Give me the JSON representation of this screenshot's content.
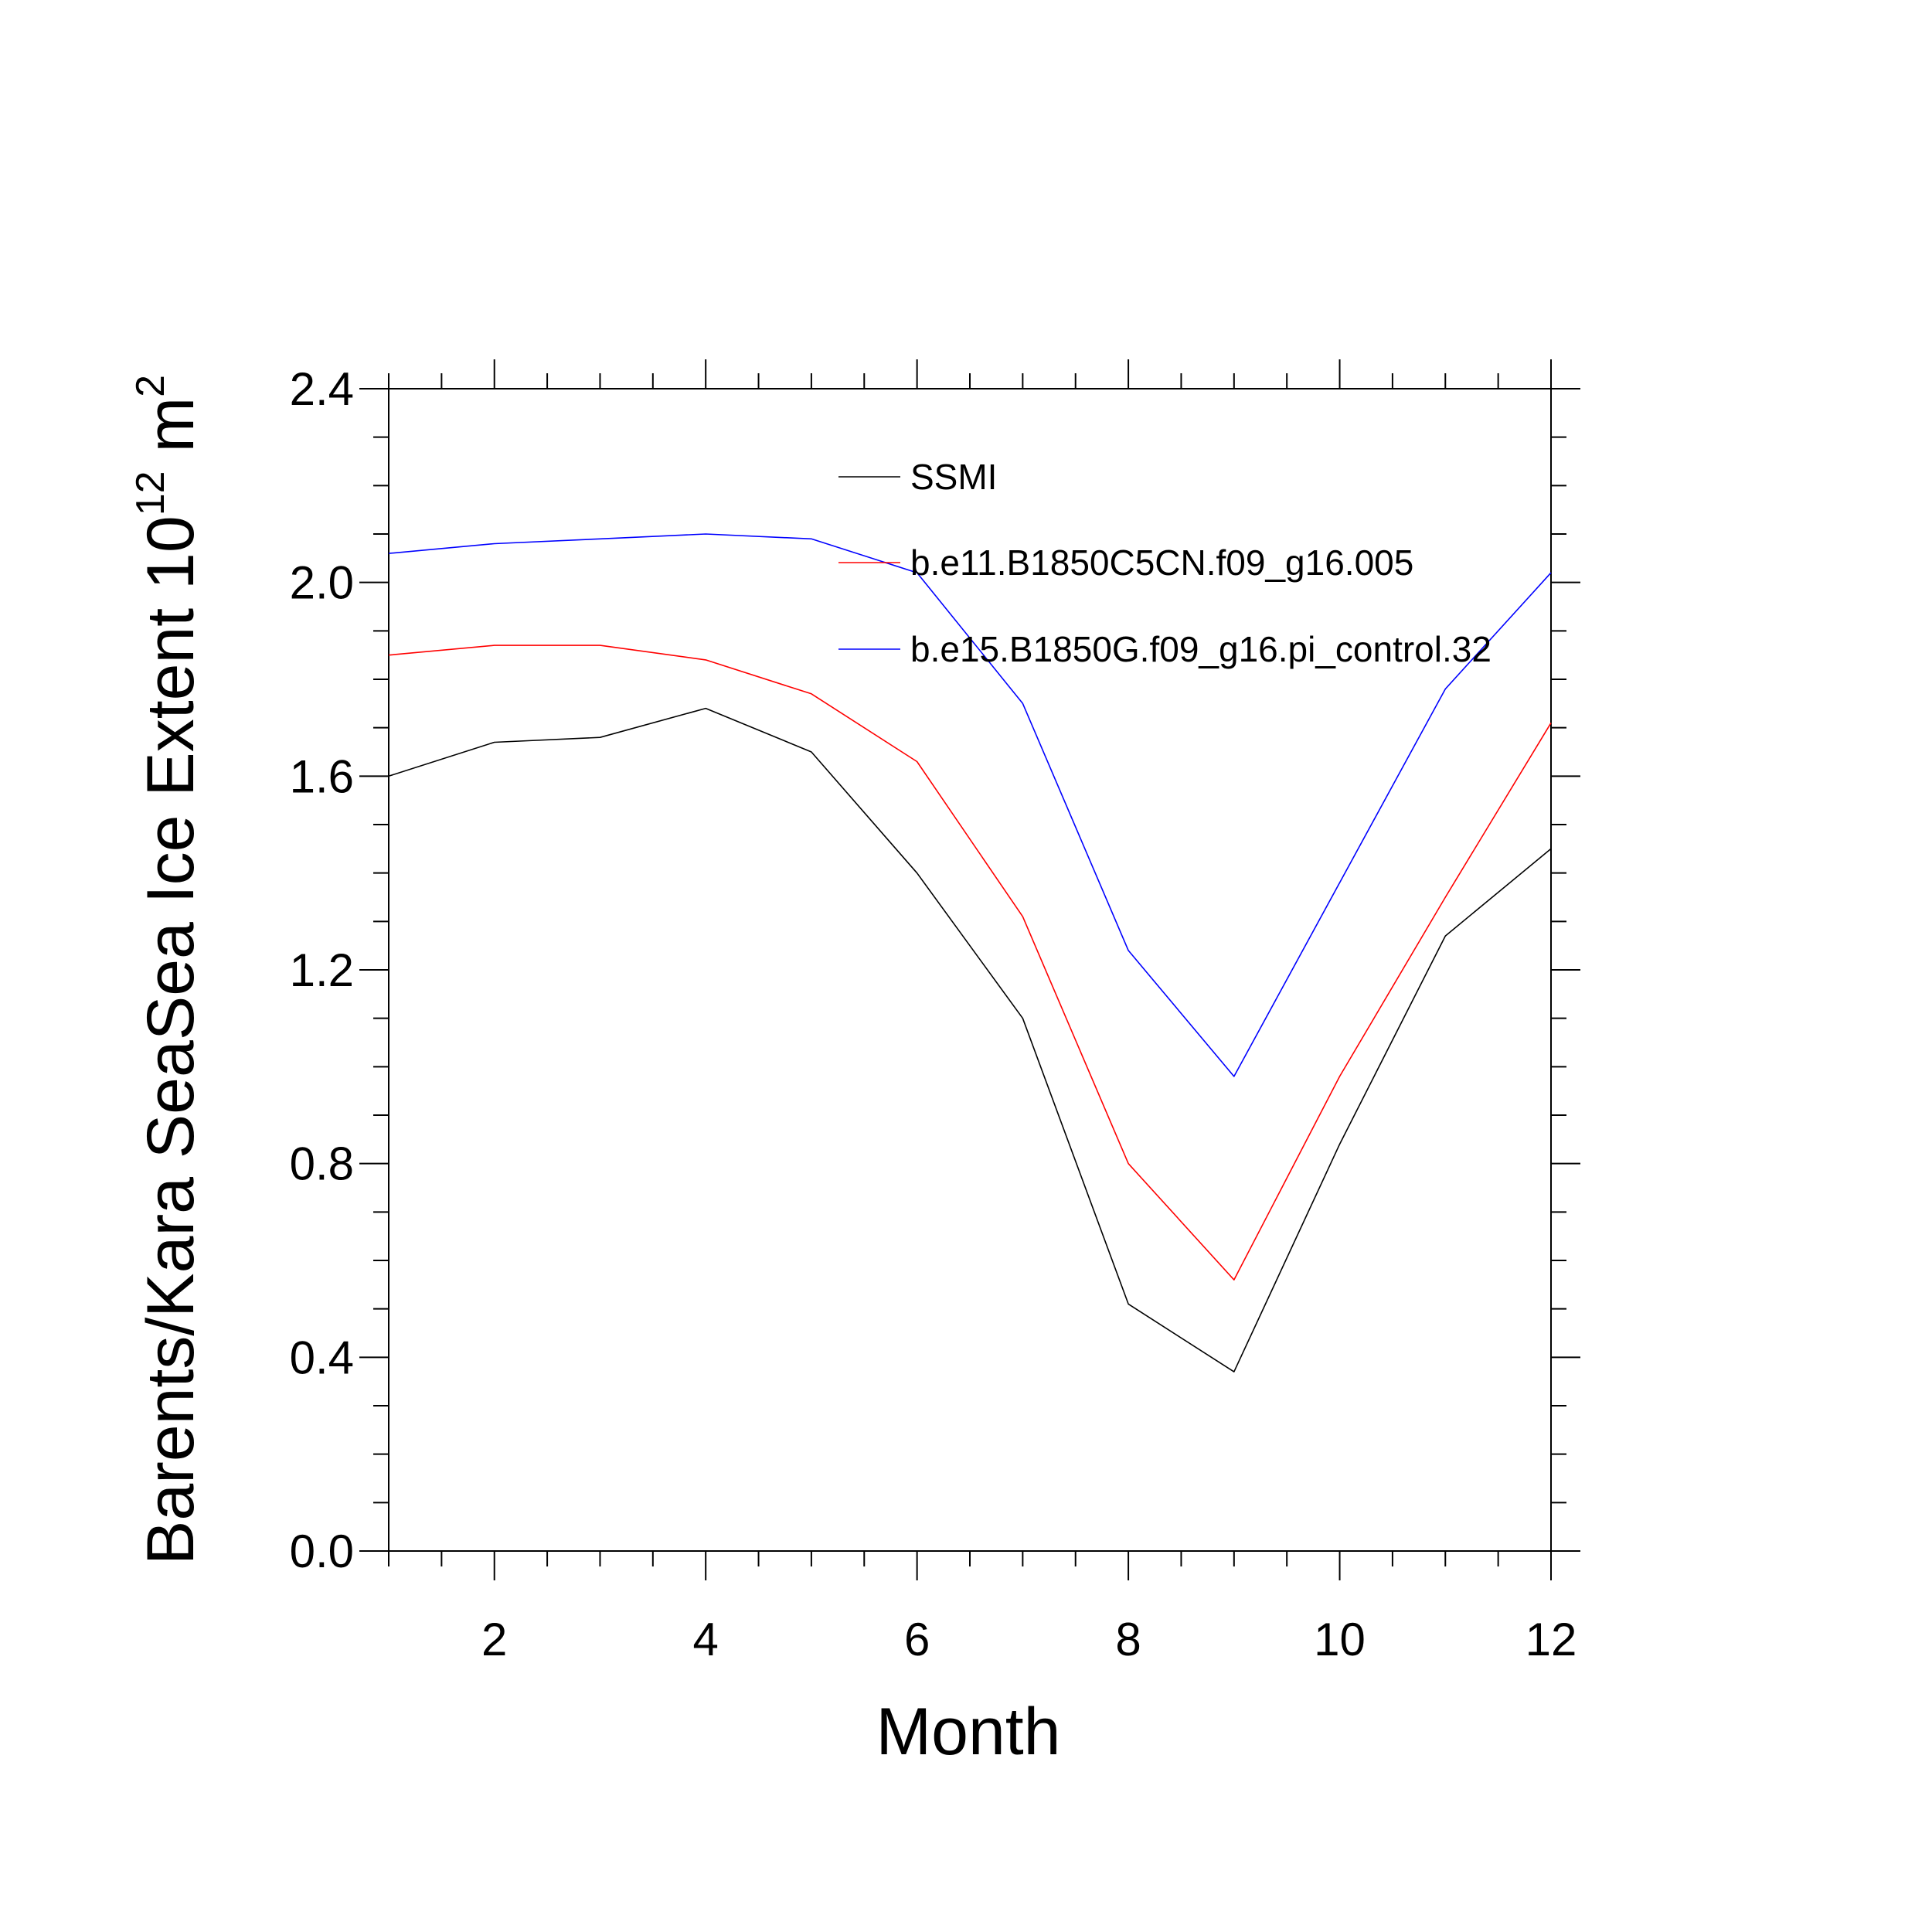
{
  "chart_data": {
    "type": "line",
    "title": "",
    "xlabel": "Month",
    "ylabel": "Barents/Kara SeaSea Ice Extent 10",
    "ylabel_exponent": "12",
    "ylabel_unit": " m",
    "ylabel_unit_exponent": "2",
    "xlim": [
      1,
      12
    ],
    "ylim": [
      0.0,
      2.4
    ],
    "x_ticks": [
      2,
      4,
      6,
      8,
      10,
      12
    ],
    "y_ticks": [
      0.0,
      0.4,
      0.8,
      1.2,
      1.6,
      2.0,
      2.4
    ],
    "y_tick_labels": [
      "0.0",
      "0.4",
      "0.8",
      "1.2",
      "1.6",
      "2.0",
      "2.4"
    ],
    "grid": false,
    "legend_position": "top-right inside",
    "x": [
      1,
      2,
      3,
      4,
      5,
      6,
      7,
      8,
      9,
      10,
      11,
      12
    ],
    "series": [
      {
        "name": "SSMI",
        "color": "#000000",
        "values": [
          1.6,
          1.67,
          1.68,
          1.74,
          1.65,
          1.4,
          1.1,
          0.51,
          0.37,
          0.84,
          1.27,
          1.45
        ]
      },
      {
        "name": "b.e11.B1850C5CN.f09_g16.005",
        "color": "#ff0000",
        "values": [
          1.85,
          1.87,
          1.87,
          1.84,
          1.77,
          1.63,
          1.31,
          0.8,
          0.56,
          0.98,
          1.35,
          1.71
        ]
      },
      {
        "name": "b.e15.B1850G.f09_g16.pi_control.32",
        "color": "#0000ff",
        "values": [
          2.06,
          2.08,
          2.09,
          2.1,
          2.09,
          2.02,
          1.75,
          1.24,
          0.98,
          1.38,
          1.78,
          2.02
        ]
      }
    ]
  }
}
